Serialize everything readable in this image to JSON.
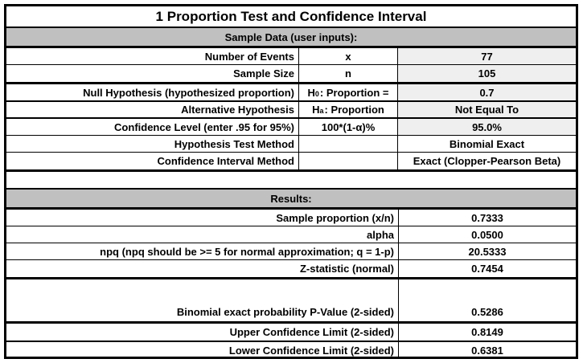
{
  "title": "1 Proportion Test and Confidence Interval",
  "colors": {
    "section_header_bg": "#c0c0c0",
    "input_cell_bg": "#efefef",
    "border": "#000000",
    "text": "#000000"
  },
  "sample_section": {
    "header": "Sample Data (user inputs):",
    "rows": [
      {
        "label": "Number of Events",
        "symbol": "x",
        "value": "77"
      },
      {
        "label": "Sample Size",
        "symbol": "n",
        "value": "105"
      },
      {
        "label": "Null Hypothesis (hypothesized proportion)",
        "symbol_pre": "H",
        "symbol_sub": "0",
        "symbol_post": ": Proportion =",
        "value": "0.7"
      },
      {
        "label": "Alternative Hypothesis",
        "symbol_pre": "H",
        "symbol_sub": "a",
        "symbol_post": ": Proportion",
        "value": "Not Equal To"
      },
      {
        "label": "Confidence Level (enter .95 for 95%)",
        "symbol": "100*(1-α)%",
        "value": "95.0%"
      },
      {
        "label": "Hypothesis Test Method",
        "symbol": "",
        "value": "Binomial Exact"
      },
      {
        "label": "Confidence Interval Method",
        "symbol": "",
        "value": "Exact (Clopper-Pearson Beta)"
      }
    ]
  },
  "results_section": {
    "header": "Results:",
    "rows": [
      {
        "label": "Sample proportion (x/n)",
        "value": "0.7333"
      },
      {
        "label": "alpha",
        "value": "0.0500"
      },
      {
        "label": "npq (npq should be >= 5 for normal approximation; q = 1-p)",
        "value": "20.5333"
      },
      {
        "label": "Z-statistic (normal)",
        "value": "0.7454"
      },
      {
        "label": "Binomial exact probability P-Value (2-sided)",
        "value": "0.5286"
      },
      {
        "label": "Upper Confidence Limit (2-sided)",
        "value": "0.8149"
      },
      {
        "label": "Lower Confidence Limit (2-sided)",
        "value": "0.6381"
      }
    ]
  }
}
